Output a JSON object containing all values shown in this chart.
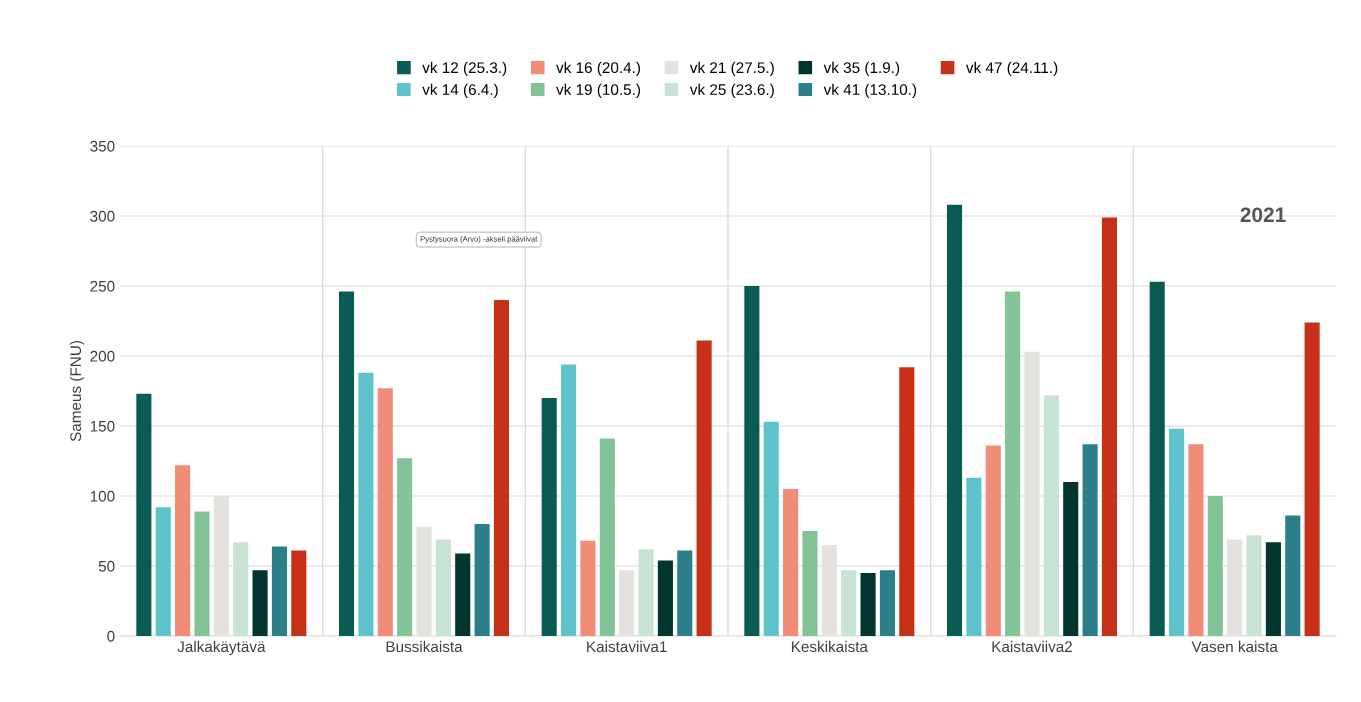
{
  "chart_data": {
    "type": "bar",
    "ylabel": "Sameus (FNU)",
    "categories": [
      "Jalkakäytävä",
      "Bussikaista",
      "Kaistaviiva1",
      "Keskikaista",
      "Kaistaviiva2",
      "Vasen kaista"
    ],
    "series": [
      {
        "name": "vk 12 (25.3.)",
        "color": "#0b5b55",
        "values": [
          173,
          246,
          170,
          250,
          308,
          253
        ]
      },
      {
        "name": "vk 14 (6.4.)",
        "color": "#5fc3cb",
        "values": [
          92,
          188,
          194,
          153,
          113,
          148
        ]
      },
      {
        "name": "vk 16 (20.4.)",
        "color": "#f08c78",
        "values": [
          122,
          177,
          68,
          105,
          136,
          137
        ]
      },
      {
        "name": "vk 19 (10.5.)",
        "color": "#82c497",
        "values": [
          89,
          127,
          141,
          75,
          246,
          100
        ]
      },
      {
        "name": "vk 21 (27.5.)",
        "color": "#e3e2de",
        "values": [
          100,
          78,
          47,
          65,
          203,
          69
        ]
      },
      {
        "name": "vk 25 (23.6.)",
        "color": "#c7e3d3",
        "values": [
          67,
          69,
          62,
          47,
          172,
          72
        ]
      },
      {
        "name": "vk 35 (1.9.)",
        "color": "#03352f",
        "values": [
          47,
          59,
          54,
          45,
          110,
          67
        ]
      },
      {
        "name": "vk 41 (13.10.)",
        "color": "#2a7f89",
        "values": [
          64,
          80,
          61,
          47,
          137,
          86
        ]
      },
      {
        "name": "vk 47 (24.11.)",
        "color": "#c63118",
        "values": [
          61,
          240,
          211,
          192,
          299,
          224
        ]
      }
    ],
    "ylim": [
      0,
      350
    ],
    "yticks": [
      0,
      50,
      100,
      150,
      200,
      250,
      300,
      350
    ],
    "grid": true,
    "legend": "top",
    "annotations": [
      "2021",
      "Pystysuora (Arvo) -akseli pääviivat"
    ]
  }
}
